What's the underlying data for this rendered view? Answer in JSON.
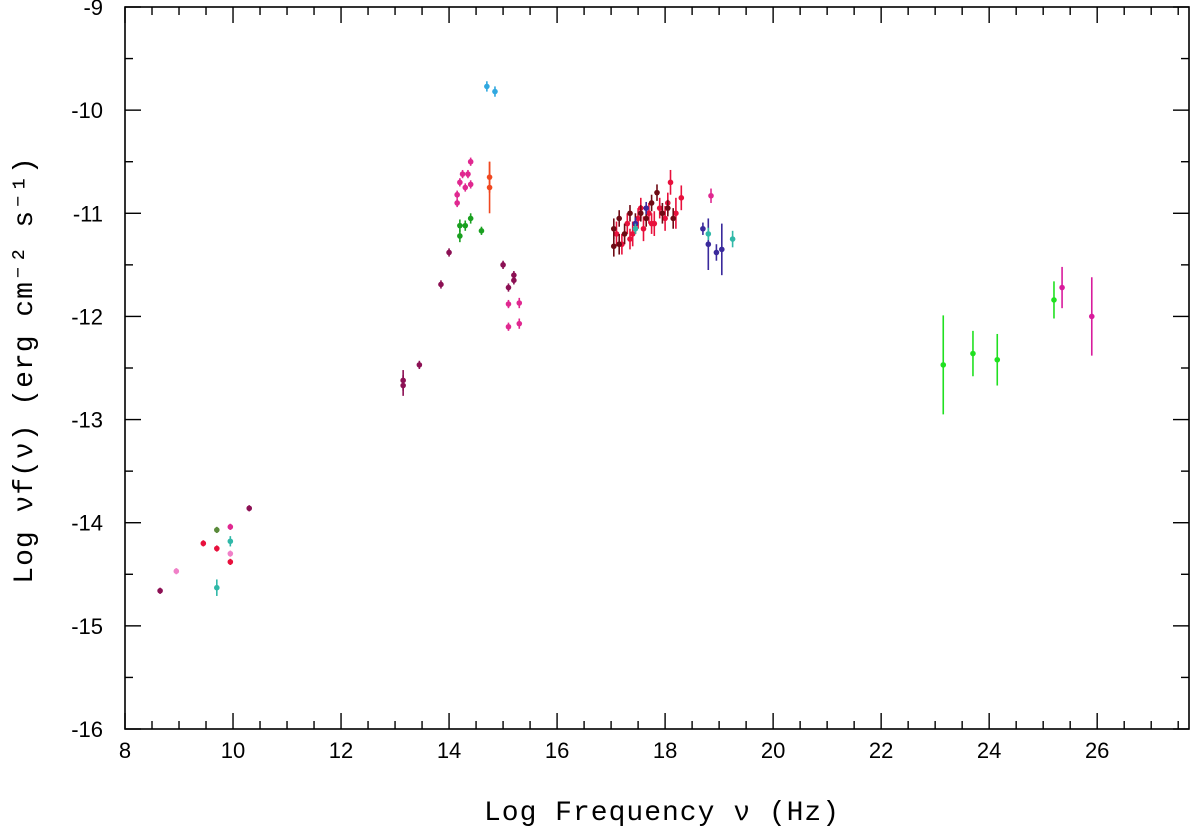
{
  "chart_data": {
    "type": "scatter",
    "title": "",
    "xlabel": "Log Frequency ν (Hz)",
    "ylabel": "Log νf(ν) (erg cm⁻² s⁻¹)",
    "xlim": [
      8,
      27.7
    ],
    "ylim": [
      -16,
      -9
    ],
    "x_ticks": [
      "8",
      "10",
      "12",
      "14",
      "16",
      "18",
      "20",
      "22",
      "24",
      "26"
    ],
    "y_ticks": [
      "-16",
      "-15",
      "-14",
      "-13",
      "-12",
      "-11",
      "-10",
      "-9"
    ],
    "grid": false,
    "legend": "none",
    "series": [
      {
        "color": "#e02890",
        "points": [
          {
            "x": 14.2,
            "y": -10.7,
            "ey": 0.04
          },
          {
            "x": 14.3,
            "y": -10.75,
            "ey": 0.04
          },
          {
            "x": 14.4,
            "y": -10.72,
            "ey": 0.04
          },
          {
            "x": 14.25,
            "y": -10.62,
            "ey": 0.04
          },
          {
            "x": 14.35,
            "y": -10.62,
            "ey": 0.04
          },
          {
            "x": 14.4,
            "y": -10.5,
            "ey": 0.04
          },
          {
            "x": 14.15,
            "y": -10.82,
            "ey": 0.04
          },
          {
            "x": 14.15,
            "y": -10.9,
            "ey": 0.04
          },
          {
            "x": 15.1,
            "y": -11.88,
            "ey": 0.04
          },
          {
            "x": 15.1,
            "y": -12.1,
            "ey": 0.04
          },
          {
            "x": 15.3,
            "y": -11.87,
            "ey": 0.05
          },
          {
            "x": 15.3,
            "y": -12.07,
            "ey": 0.05
          },
          {
            "x": 9.95,
            "y": -14.04,
            "ey": 0.03
          },
          {
            "x": 18.85,
            "y": -10.83,
            "ey": 0.07
          }
        ]
      },
      {
        "color": "#8c1054",
        "points": [
          {
            "x": 13.15,
            "y": -12.62,
            "ey": 0.1
          },
          {
            "x": 13.15,
            "y": -12.67,
            "ey": 0.1
          },
          {
            "x": 13.45,
            "y": -12.47,
            "ey": 0.04
          },
          {
            "x": 13.85,
            "y": -11.69,
            "ey": 0.04
          },
          {
            "x": 14.0,
            "y": -11.38,
            "ey": 0.04
          },
          {
            "x": 15.0,
            "y": -11.5,
            "ey": 0.04
          },
          {
            "x": 15.1,
            "y": -11.72,
            "ey": 0.04
          },
          {
            "x": 15.2,
            "y": -11.6,
            "ey": 0.04
          },
          {
            "x": 15.2,
            "y": -11.65,
            "ey": 0.04
          },
          {
            "x": 8.65,
            "y": -14.66,
            "ey": 0.03
          },
          {
            "x": 10.3,
            "y": -13.86,
            "ey": 0.03
          }
        ]
      },
      {
        "color": "#1aa020",
        "points": [
          {
            "x": 14.2,
            "y": -11.12,
            "ey": 0.06
          },
          {
            "x": 14.2,
            "y": -11.22,
            "ey": 0.06
          },
          {
            "x": 14.3,
            "y": -11.12,
            "ey": 0.05
          },
          {
            "x": 14.4,
            "y": -11.05,
            "ey": 0.05
          },
          {
            "x": 14.6,
            "y": -11.17,
            "ey": 0.04
          }
        ]
      },
      {
        "color": "#30a8e0",
        "points": [
          {
            "x": 14.7,
            "y": -9.77,
            "ey": 0.05
          },
          {
            "x": 14.85,
            "y": -9.82,
            "ey": 0.05
          }
        ]
      },
      {
        "color": "#f04820",
        "points": [
          {
            "x": 14.75,
            "y": -10.75,
            "ey": 0.25
          },
          {
            "x": 14.75,
            "y": -10.65,
            "ey": 0.15
          }
        ]
      },
      {
        "color": "#e8103c",
        "points": [
          {
            "x": 17.1,
            "y": -11.2,
            "ey": 0.12
          },
          {
            "x": 17.2,
            "y": -11.3,
            "ey": 0.1
          },
          {
            "x": 17.3,
            "y": -11.1,
            "ey": 0.1
          },
          {
            "x": 17.4,
            "y": -11.2,
            "ey": 0.12
          },
          {
            "x": 17.5,
            "y": -11.05,
            "ey": 0.1
          },
          {
            "x": 17.6,
            "y": -11.15,
            "ey": 0.12
          },
          {
            "x": 17.7,
            "y": -11.0,
            "ey": 0.1
          },
          {
            "x": 17.8,
            "y": -11.1,
            "ey": 0.12
          },
          {
            "x": 17.9,
            "y": -10.95,
            "ey": 0.1
          },
          {
            "x": 18.0,
            "y": -11.05,
            "ey": 0.12
          },
          {
            "x": 18.1,
            "y": -10.7,
            "ey": 0.12
          },
          {
            "x": 18.2,
            "y": -11.0,
            "ey": 0.15
          },
          {
            "x": 18.3,
            "y": -10.85,
            "ey": 0.12
          },
          {
            "x": 17.35,
            "y": -11.25,
            "ey": 0.1
          },
          {
            "x": 17.55,
            "y": -10.95,
            "ey": 0.1
          },
          {
            "x": 17.75,
            "y": -11.1,
            "ey": 0.1
          },
          {
            "x": 18.05,
            "y": -10.9,
            "ey": 0.1
          },
          {
            "x": 9.7,
            "y": -14.25,
            "ey": 0.03
          },
          {
            "x": 9.95,
            "y": -14.38,
            "ey": 0.03
          },
          {
            "x": 9.45,
            "y": -14.2,
            "ey": 0.03
          }
        ]
      },
      {
        "color": "#6e0a14",
        "points": [
          {
            "x": 17.05,
            "y": -11.15,
            "ey": 0.1
          },
          {
            "x": 17.05,
            "y": -11.32,
            "ey": 0.1
          },
          {
            "x": 17.15,
            "y": -11.05,
            "ey": 0.08
          },
          {
            "x": 17.25,
            "y": -11.2,
            "ey": 0.1
          },
          {
            "x": 17.35,
            "y": -11.0,
            "ey": 0.08
          },
          {
            "x": 17.45,
            "y": -11.1,
            "ey": 0.1
          },
          {
            "x": 17.55,
            "y": -11.0,
            "ey": 0.08
          },
          {
            "x": 17.65,
            "y": -11.05,
            "ey": 0.08
          },
          {
            "x": 17.75,
            "y": -10.9,
            "ey": 0.08
          },
          {
            "x": 17.85,
            "y": -10.8,
            "ey": 0.08
          },
          {
            "x": 17.95,
            "y": -11.0,
            "ey": 0.1
          },
          {
            "x": 18.05,
            "y": -10.95,
            "ey": 0.08
          },
          {
            "x": 18.15,
            "y": -11.05,
            "ey": 0.1
          },
          {
            "x": 17.15,
            "y": -11.3,
            "ey": 0.1
          }
        ]
      },
      {
        "color": "#3a2a9c",
        "points": [
          {
            "x": 18.7,
            "y": -11.15,
            "ey": 0.06
          },
          {
            "x": 18.8,
            "y": -11.3,
            "ey": 0.25
          },
          {
            "x": 18.95,
            "y": -11.38,
            "ey": 0.08
          },
          {
            "x": 19.05,
            "y": -11.35,
            "ey": 0.25
          },
          {
            "x": 17.45,
            "y": -11.1,
            "ey": 0.06
          },
          {
            "x": 17.65,
            "y": -10.95,
            "ey": 0.06
          }
        ]
      },
      {
        "color": "#30b8a8",
        "points": [
          {
            "x": 19.25,
            "y": -11.25,
            "ey": 0.08
          },
          {
            "x": 9.7,
            "y": -14.63,
            "ey": 0.08
          },
          {
            "x": 9.95,
            "y": -14.18,
            "ey": 0.05
          },
          {
            "x": 18.8,
            "y": -11.2,
            "ey": 0.06
          },
          {
            "x": 17.45,
            "y": -11.15,
            "ey": 0.05
          }
        ]
      },
      {
        "color": "#20e020",
        "points": [
          {
            "x": 23.15,
            "y": -12.47,
            "ey": 0.48
          },
          {
            "x": 23.7,
            "y": -12.36,
            "ey": 0.22
          },
          {
            "x": 24.15,
            "y": -12.42,
            "ey": 0.25
          },
          {
            "x": 25.2,
            "y": -11.84,
            "ey": 0.18
          }
        ]
      },
      {
        "color": "#d81c9c",
        "points": [
          {
            "x": 25.35,
            "y": -11.72,
            "ey": 0.2
          },
          {
            "x": 25.9,
            "y": -12.0,
            "ey": 0.38
          }
        ]
      },
      {
        "color": "#f080c8",
        "points": [
          {
            "x": 9.95,
            "y": -14.3,
            "ey": 0.03
          },
          {
            "x": 8.95,
            "y": -14.47,
            "ey": 0.03
          }
        ]
      },
      {
        "color": "#5a8a3a",
        "points": [
          {
            "x": 9.7,
            "y": -14.07,
            "ey": 0.03
          }
        ]
      }
    ]
  }
}
